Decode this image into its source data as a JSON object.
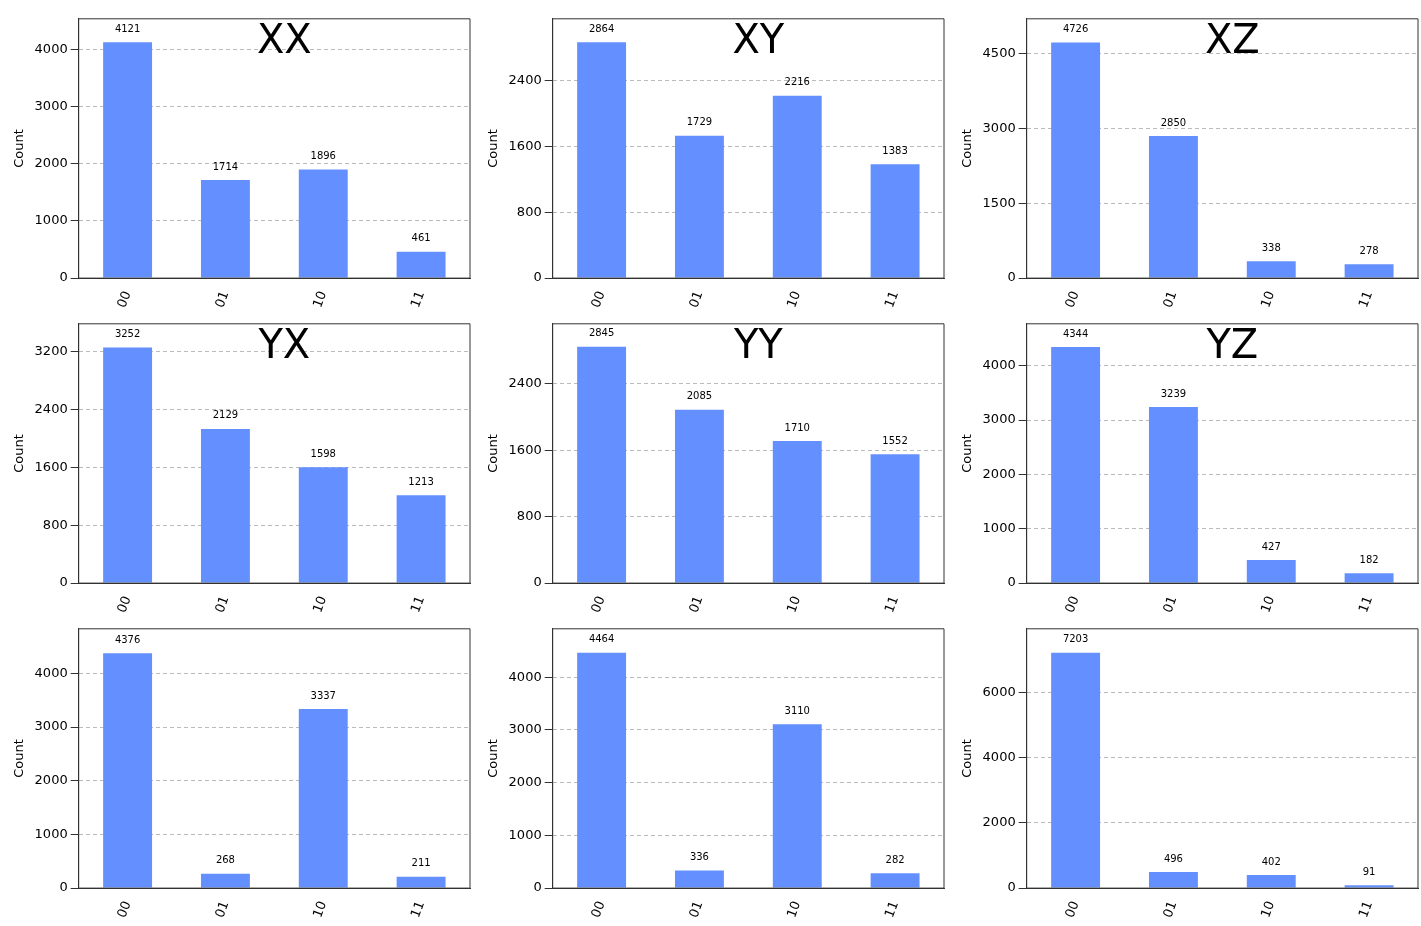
{
  "chart_data": [
    {
      "type": "bar",
      "title": "XX",
      "ylabel": "Count",
      "categories": [
        "00",
        "01",
        "10",
        "11"
      ],
      "values": [
        4121,
        1714,
        1896,
        461
      ],
      "color": "#648fff",
      "ylim": [
        0,
        4530
      ],
      "yticks": [
        0,
        1000,
        2000,
        3000,
        4000
      ],
      "grid": "y",
      "data_labels": true
    },
    {
      "type": "bar",
      "title": "XY",
      "ylabel": "Count",
      "categories": [
        "00",
        "01",
        "10",
        "11"
      ],
      "values": [
        2864,
        1729,
        2216,
        1383
      ],
      "color": "#648fff",
      "ylim": [
        0,
        3150
      ],
      "yticks": [
        0,
        800,
        1600,
        2400
      ],
      "grid": "y",
      "data_labels": true
    },
    {
      "type": "bar",
      "title": "XZ",
      "ylabel": "Count",
      "categories": [
        "00",
        "01",
        "10",
        "11"
      ],
      "values": [
        4726,
        2850,
        338,
        278
      ],
      "color": "#648fff",
      "ylim": [
        0,
        5200
      ],
      "yticks": [
        0,
        1500,
        3000,
        4500
      ],
      "grid": "y",
      "data_labels": true
    },
    {
      "type": "bar",
      "title": "YX",
      "ylabel": "Count",
      "categories": [
        "00",
        "01",
        "10",
        "11"
      ],
      "values": [
        3252,
        2129,
        1598,
        1213
      ],
      "color": "#648fff",
      "ylim": [
        0,
        3580
      ],
      "yticks": [
        0,
        800,
        1600,
        2400,
        3200
      ],
      "grid": "y",
      "data_labels": true
    },
    {
      "type": "bar",
      "title": "YY",
      "ylabel": "Count",
      "categories": [
        "00",
        "01",
        "10",
        "11"
      ],
      "values": [
        2845,
        2085,
        1710,
        1552
      ],
      "color": "#648fff",
      "ylim": [
        0,
        3120
      ],
      "yticks": [
        0,
        800,
        1600,
        2400
      ],
      "grid": "y",
      "data_labels": true
    },
    {
      "type": "bar",
      "title": "YZ",
      "ylabel": "Count",
      "categories": [
        "00",
        "01",
        "10",
        "11"
      ],
      "values": [
        4344,
        3239,
        427,
        182
      ],
      "color": "#648fff",
      "ylim": [
        0,
        4770
      ],
      "yticks": [
        0,
        1000,
        2000,
        3000,
        4000
      ],
      "grid": "y",
      "data_labels": true
    },
    {
      "type": "bar",
      "ylabel": "Count",
      "categories": [
        "00",
        "01",
        "10",
        "11"
      ],
      "values": [
        4376,
        268,
        3337,
        211
      ],
      "color": "#648fff",
      "ylim": [
        0,
        4830
      ],
      "yticks": [
        0,
        1000,
        2000,
        3000,
        4000
      ],
      "grid": "y",
      "data_labels": true
    },
    {
      "type": "bar",
      "ylabel": "Count",
      "categories": [
        "00",
        "01",
        "10",
        "11"
      ],
      "values": [
        4464,
        336,
        3110,
        282
      ],
      "color": "#648fff",
      "ylim": [
        0,
        4920
      ],
      "yticks": [
        0,
        1000,
        2000,
        3000,
        4000
      ],
      "grid": "y",
      "data_labels": true
    },
    {
      "type": "bar",
      "ylabel": "Count",
      "categories": [
        "00",
        "01",
        "10",
        "11"
      ],
      "values": [
        7203,
        496,
        402,
        91
      ],
      "color": "#648fff",
      "ylim": [
        0,
        7940
      ],
      "yticks": [
        0,
        2000,
        4000,
        6000
      ],
      "grid": "y",
      "data_labels": true
    }
  ]
}
